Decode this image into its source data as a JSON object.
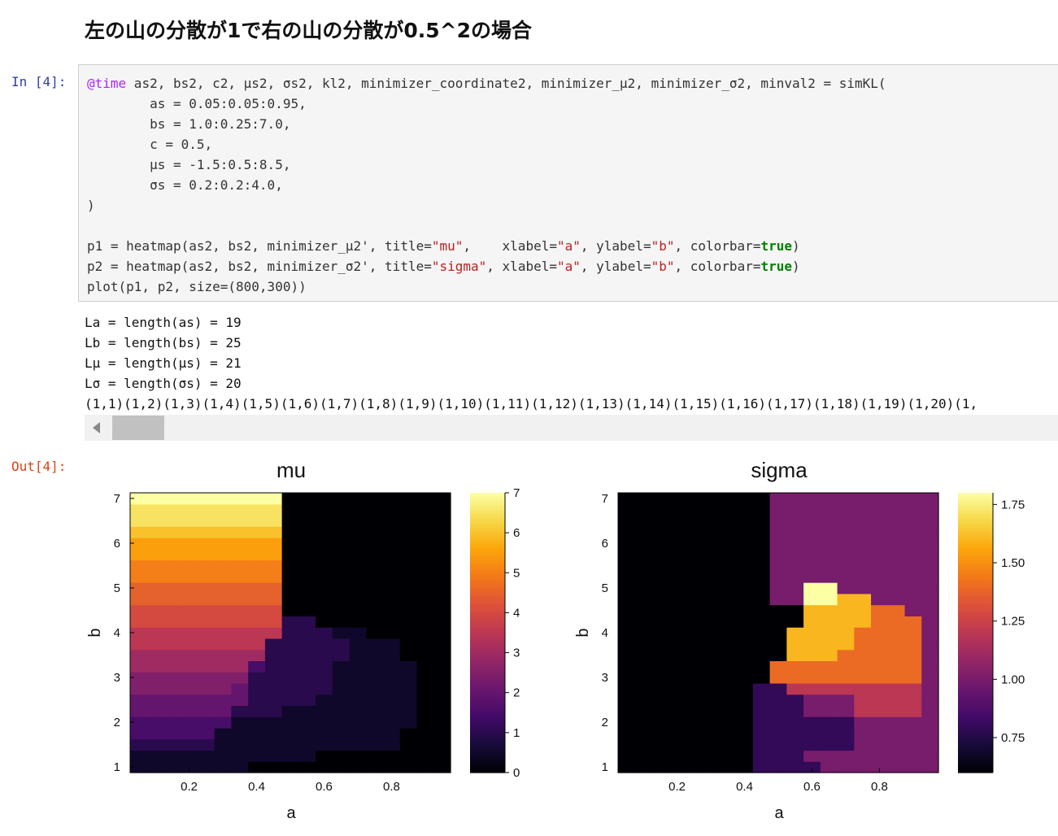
{
  "heading": "左の山の分散が1で右の山の分散が0.5^2の場合",
  "cell": {
    "in_prompt": "In [4]:",
    "out_prompt": "Out[4]:",
    "code_lines": [
      [
        {
          "t": "@time",
          "c": "kw"
        },
        {
          "t": " as2, bs2, c2, μs2, σs2, kl2, minimizer_coordinate2, minimizer_μ2, minimizer_σ2, minval2 = simKL("
        }
      ],
      [
        {
          "t": "        as = 0.05:0.05:0.95,"
        }
      ],
      [
        {
          "t": "        bs = 1.0:0.25:7.0,"
        }
      ],
      [
        {
          "t": "        c = 0.5,"
        }
      ],
      [
        {
          "t": "        μs = -1.5:0.5:8.5,"
        }
      ],
      [
        {
          "t": "        σs = 0.2:0.2:4.0,"
        }
      ],
      [
        {
          "t": ")"
        }
      ],
      [
        {
          "t": ""
        }
      ],
      [
        {
          "t": "p1 = heatmap(as2, bs2, minimizer_μ2', title="
        },
        {
          "t": "\"mu\"",
          "c": "str"
        },
        {
          "t": ",    xlabel="
        },
        {
          "t": "\"a\"",
          "c": "str"
        },
        {
          "t": ", ylabel="
        },
        {
          "t": "\"b\"",
          "c": "str"
        },
        {
          "t": ", colorbar="
        },
        {
          "t": "true",
          "c": "bool"
        },
        {
          "t": ")"
        }
      ],
      [
        {
          "t": "p2 = heatmap(as2, bs2, minimizer_σ2', title="
        },
        {
          "t": "\"sigma\"",
          "c": "str"
        },
        {
          "t": ", xlabel="
        },
        {
          "t": "\"a\"",
          "c": "str"
        },
        {
          "t": ", ylabel="
        },
        {
          "t": "\"b\"",
          "c": "str"
        },
        {
          "t": ", colorbar="
        },
        {
          "t": "true",
          "c": "bool"
        },
        {
          "t": ")"
        }
      ],
      [
        {
          "t": "plot(p1, p2, size=(800,300))"
        }
      ]
    ],
    "stdout_lines": [
      "La = length(as) = 19",
      "Lb = length(bs) = 25",
      "Lμ = length(μs) = 21",
      "Lσ = length(σs) = 20",
      "(1,1)(1,2)(1,3)(1,4)(1,5)(1,6)(1,7)(1,8)(1,9)(1,10)(1,11)(1,12)(1,13)(1,14)(1,15)(1,16)(1,17)(1,18)(1,19)(1,20)(1,"
    ]
  },
  "colors": {
    "code_bg": "#f5f5f5",
    "in_prompt": "#303f9f",
    "out_prompt": "#d84315",
    "colormap": "inferno"
  },
  "icons": {
    "scroll_left": "chevron-left-icon"
  },
  "chart_data": [
    {
      "type": "heatmap",
      "title": "mu",
      "xlabel": "a",
      "ylabel": "b",
      "x_ticks": [
        0.2,
        0.4,
        0.6,
        0.8
      ],
      "y_ticks": [
        1,
        2,
        3,
        4,
        5,
        6,
        7
      ],
      "colorbar_ticks": [
        0,
        1,
        2,
        3,
        4,
        5,
        6,
        7
      ],
      "clim": [
        0,
        7
      ],
      "rows_b_low_to_high": [
        "0.5,0.5,0.5,0.5,0.5,0.5,0.5,0,0,0,0,0,0,0,0,0,0,0,0",
        "0.5,0.5,0.5,0.5,0.5,0.5,0.5,0.5,0.5,0.5,0.5,0,0,0,0,0,0,0,0",
        "1,1,1,1,1,0.5,0.5,0.5,0.5,0.5,0.5,0.5,0.5,0.5,0.5,0.5,0,0,0",
        "1.5,1.5,1.5,1.5,1.5,0.5,0.5,0.5,0.5,0.5,0.5,0.5,0.5,0.5,0.5,0.5,0,0,0",
        "1.5,1.5,1.5,1.5,1.5,1.5,0.5,0.5,0.5,0.5,0.5,0.5,0.5,0.5,0.5,0.5,0.5,0,0",
        "2,2,2,2,2,2,1,1,1,0.5,0.5,0.5,0.5,0.5,0.5,0.5,0.5,0,0",
        "2,2,2,2,2,2,2,1,1,1,1,0.5,0.5,0.5,0.5,0.5,0.5,0,0",
        "2.5,2.5,2.5,2.5,2.5,2.5,2,1,1,1,1,1,0.5,0.5,0.5,0.5,0.5,0,0",
        "2.5,2.5,2.5,2.5,2.5,2.5,2.5,1,1,1,1,1,0.5,0.5,0.5,0.5,0.5,0,0",
        "3,3,3,3,3,3,3,1.5,1,1,1,1,0.5,0.5,0.5,0.5,0.5,0,0",
        "3,3,3,3,3,3,3,3,1,1,1,1,1,0.5,0.5,0.5,0,0,0",
        "3.5,3.5,3.5,3.5,3.5,3.5,3.5,3.5,1,1,1,1,1,0.5,0.5,0.5,0,0,0",
        "3.5,3.5,3.5,3.5,3.5,3.5,3.5,3.5,3.5,1,1,1,0.5,0.5,0,0,0,0,0",
        "4,4,4,4,4,4,4,4,4,1,1,0,0,0,0,0,0,0,0",
        "4,4,4,4,4,4,4,4,4,0,0,0,0,0,0,0,0,0,0",
        "4.5,4.5,4.5,4.5,4.5,4.5,4.5,4.5,4.5,0,0,0,0,0,0,0,0,0,0",
        "4.5,4.5,4.5,4.5,4.5,4.5,4.5,4.5,4.5,0,0,0,0,0,0,0,0,0,0",
        "5,5,5,5,5,5,5,5,5,0,0,0,0,0,0,0,0,0,0",
        "5,5,5,5,5,5,5,5,5,0,0,0,0,0,0,0,0,0,0",
        "5.5,5.5,5.5,5.5,5.5,5.5,5.5,5.5,5.5,0,0,0,0,0,0,0,0,0,0",
        "5.5,5.5,5.5,5.5,5.5,5.5,5.5,5.5,5.5,0,0,0,0,0,0,0,0,0,0",
        "6,6,6,6,6,6,6,6,6,0,0,0,0,0,0,0,0,0,0",
        "6.5,6.5,6.5,6.5,6.5,6.5,6.5,6.5,6.5,0,0,0,0,0,0,0,0,0,0",
        "6.5,6.5,6.5,6.5,6.5,6.5,6.5,6.5,6.5,0,0,0,0,0,0,0,0,0,0",
        "7,7,7,7,7,7,7,7,7,0,0,0,0,0,0,0,0,0,0"
      ]
    },
    {
      "type": "heatmap",
      "title": "sigma",
      "xlabel": "a",
      "ylabel": "b",
      "x_ticks": [
        0.2,
        0.4,
        0.6,
        0.8
      ],
      "y_ticks": [
        1,
        2,
        3,
        4,
        5,
        6,
        7
      ],
      "colorbar_ticks": [
        "0.75",
        "1.00",
        "1.25",
        "1.50",
        "1.75"
      ],
      "clim": [
        0.6,
        1.8
      ],
      "rows_b_low_to_high": [
        "0.6,0.6,0.6,0.6,0.6,0.6,0.6,0.6,0.8,0.8,0.8,0.8,1,1,1,1,1,1,1",
        "0.6,0.6,0.6,0.6,0.6,0.6,0.6,0.6,0.8,0.8,0.8,1,1,1,1,1,1,1,1",
        "0.6,0.6,0.6,0.6,0.6,0.6,0.6,0.6,0.8,0.8,0.8,0.8,0.8,0.8,1,1,1,1,1",
        "0.6,0.6,0.6,0.6,0.6,0.6,0.6,0.6,0.8,0.8,0.8,0.8,0.8,0.8,1,1,1,1,1",
        "0.6,0.6,0.6,0.6,0.6,0.6,0.6,0.6,0.8,0.8,0.8,0.8,0.8,0.8,1,1,1,1,1",
        "0.6,0.6,0.6,0.6,0.6,0.6,0.6,0.6,0.8,0.8,0.8,1,1,1,1.2,1.2,1.2,1.2,1",
        "0.6,0.6,0.6,0.6,0.6,0.6,0.6,0.6,0.8,0.8,0.8,1,1,1,1.2,1.2,1.2,1.2,1",
        "0.6,0.6,0.6,0.6,0.6,0.6,0.6,0.6,0.8,0.8,1.2,1.2,1.2,1.2,1.2,1.2,1.2,1.2,1",
        "0.6,0.6,0.6,0.6,0.6,0.6,0.6,0.6,0.6,1.4,1.4,1.4,1.4,1.4,1.4,1.4,1.4,1.4,1",
        "0.6,0.6,0.6,0.6,0.6,0.6,0.6,0.6,0.6,1.4,1.4,1.4,1.4,1.4,1.4,1.4,1.4,1.4,1",
        "0.6,0.6,0.6,0.6,0.6,0.6,0.6,0.6,0.6,0.6,1.6,1.6,1.6,1.4,1.4,1.4,1.4,1.4,1",
        "0.6,0.6,0.6,0.6,0.6,0.6,0.6,0.6,0.6,0.6,1.6,1.6,1.6,1.6,1.4,1.4,1.4,1.4,1",
        "0.6,0.6,0.6,0.6,0.6,0.6,0.6,0.6,0.6,0.6,1.6,1.6,1.6,1.6,1.4,1.4,1.4,1.4,1",
        "0.6,0.6,0.6,0.6,0.6,0.6,0.6,0.6,0.6,0.6,0.6,1.6,1.6,1.6,1.6,1.4,1.4,1.4,1",
        "0.6,0.6,0.6,0.6,0.6,0.6,0.6,0.6,0.6,0.6,0.6,1.6,1.6,1.6,1.6,1.4,1.4,1,1",
        "0.6,0.6,0.6,0.6,0.6,0.6,0.6,0.6,0.6,1,1,1.8,1.8,1.6,1.6,1,1,1,1",
        "0.6,0.6,0.6,0.6,0.6,0.6,0.6,0.6,0.6,1,1,1.8,1.8,1,1,1,1,1,1",
        "0.6,0.6,0.6,0.6,0.6,0.6,0.6,0.6,0.6,1,1,1,1,1,1,1,1,1,1",
        "0.6,0.6,0.6,0.6,0.6,0.6,0.6,0.6,0.6,1,1,1,1,1,1,1,1,1,1",
        "0.6,0.6,0.6,0.6,0.6,0.6,0.6,0.6,0.6,1,1,1,1,1,1,1,1,1,1",
        "0.6,0.6,0.6,0.6,0.6,0.6,0.6,0.6,0.6,1,1,1,1,1,1,1,1,1,1",
        "0.6,0.6,0.6,0.6,0.6,0.6,0.6,0.6,0.6,1,1,1,1,1,1,1,1,1,1",
        "0.6,0.6,0.6,0.6,0.6,0.6,0.6,0.6,0.6,1,1,1,1,1,1,1,1,1,1",
        "0.6,0.6,0.6,0.6,0.6,0.6,0.6,0.6,0.6,1,1,1,1,1,1,1,1,1,1",
        "0.6,0.6,0.6,0.6,0.6,0.6,0.6,0.6,0.6,1,1,1,1,1,1,1,1,1,1"
      ]
    }
  ]
}
